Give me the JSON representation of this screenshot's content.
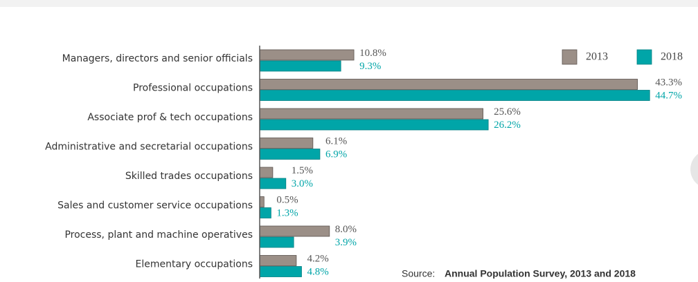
{
  "chart_data": {
    "type": "bar",
    "orientation": "horizontal",
    "categories": [
      "Managers, directors and senior officials",
      "Professional occupations",
      "Associate prof & tech occupations",
      "Administrative and secretarial occupations",
      "Skilled trades occupations",
      "Sales and customer service occupations",
      "Process, plant and machine operatives",
      "Elementary occupations"
    ],
    "series": [
      {
        "name": "2013",
        "color": "#9b8f87",
        "values": [
          10.8,
          43.3,
          25.6,
          6.1,
          1.5,
          0.5,
          8.0,
          4.2
        ],
        "value_labels": [
          "10.8%",
          "43.3%",
          "25.6%",
          "6.1%",
          "1.5%",
          "0.5%",
          "8.0%",
          "4.2%"
        ]
      },
      {
        "name": "2018",
        "color": "#00a5a8",
        "values": [
          9.3,
          44.7,
          26.2,
          6.9,
          3.0,
          1.3,
          3.9,
          4.8
        ],
        "value_labels": [
          "9.3%",
          "44.7%",
          "26.2%",
          "6.9%",
          "3.0%",
          "1.3%",
          "3.9%",
          "4.8%"
        ]
      }
    ],
    "legend": "top-right",
    "source_prefix": "Source:",
    "source": "Annual Population Survey, 2013 and 2018"
  }
}
